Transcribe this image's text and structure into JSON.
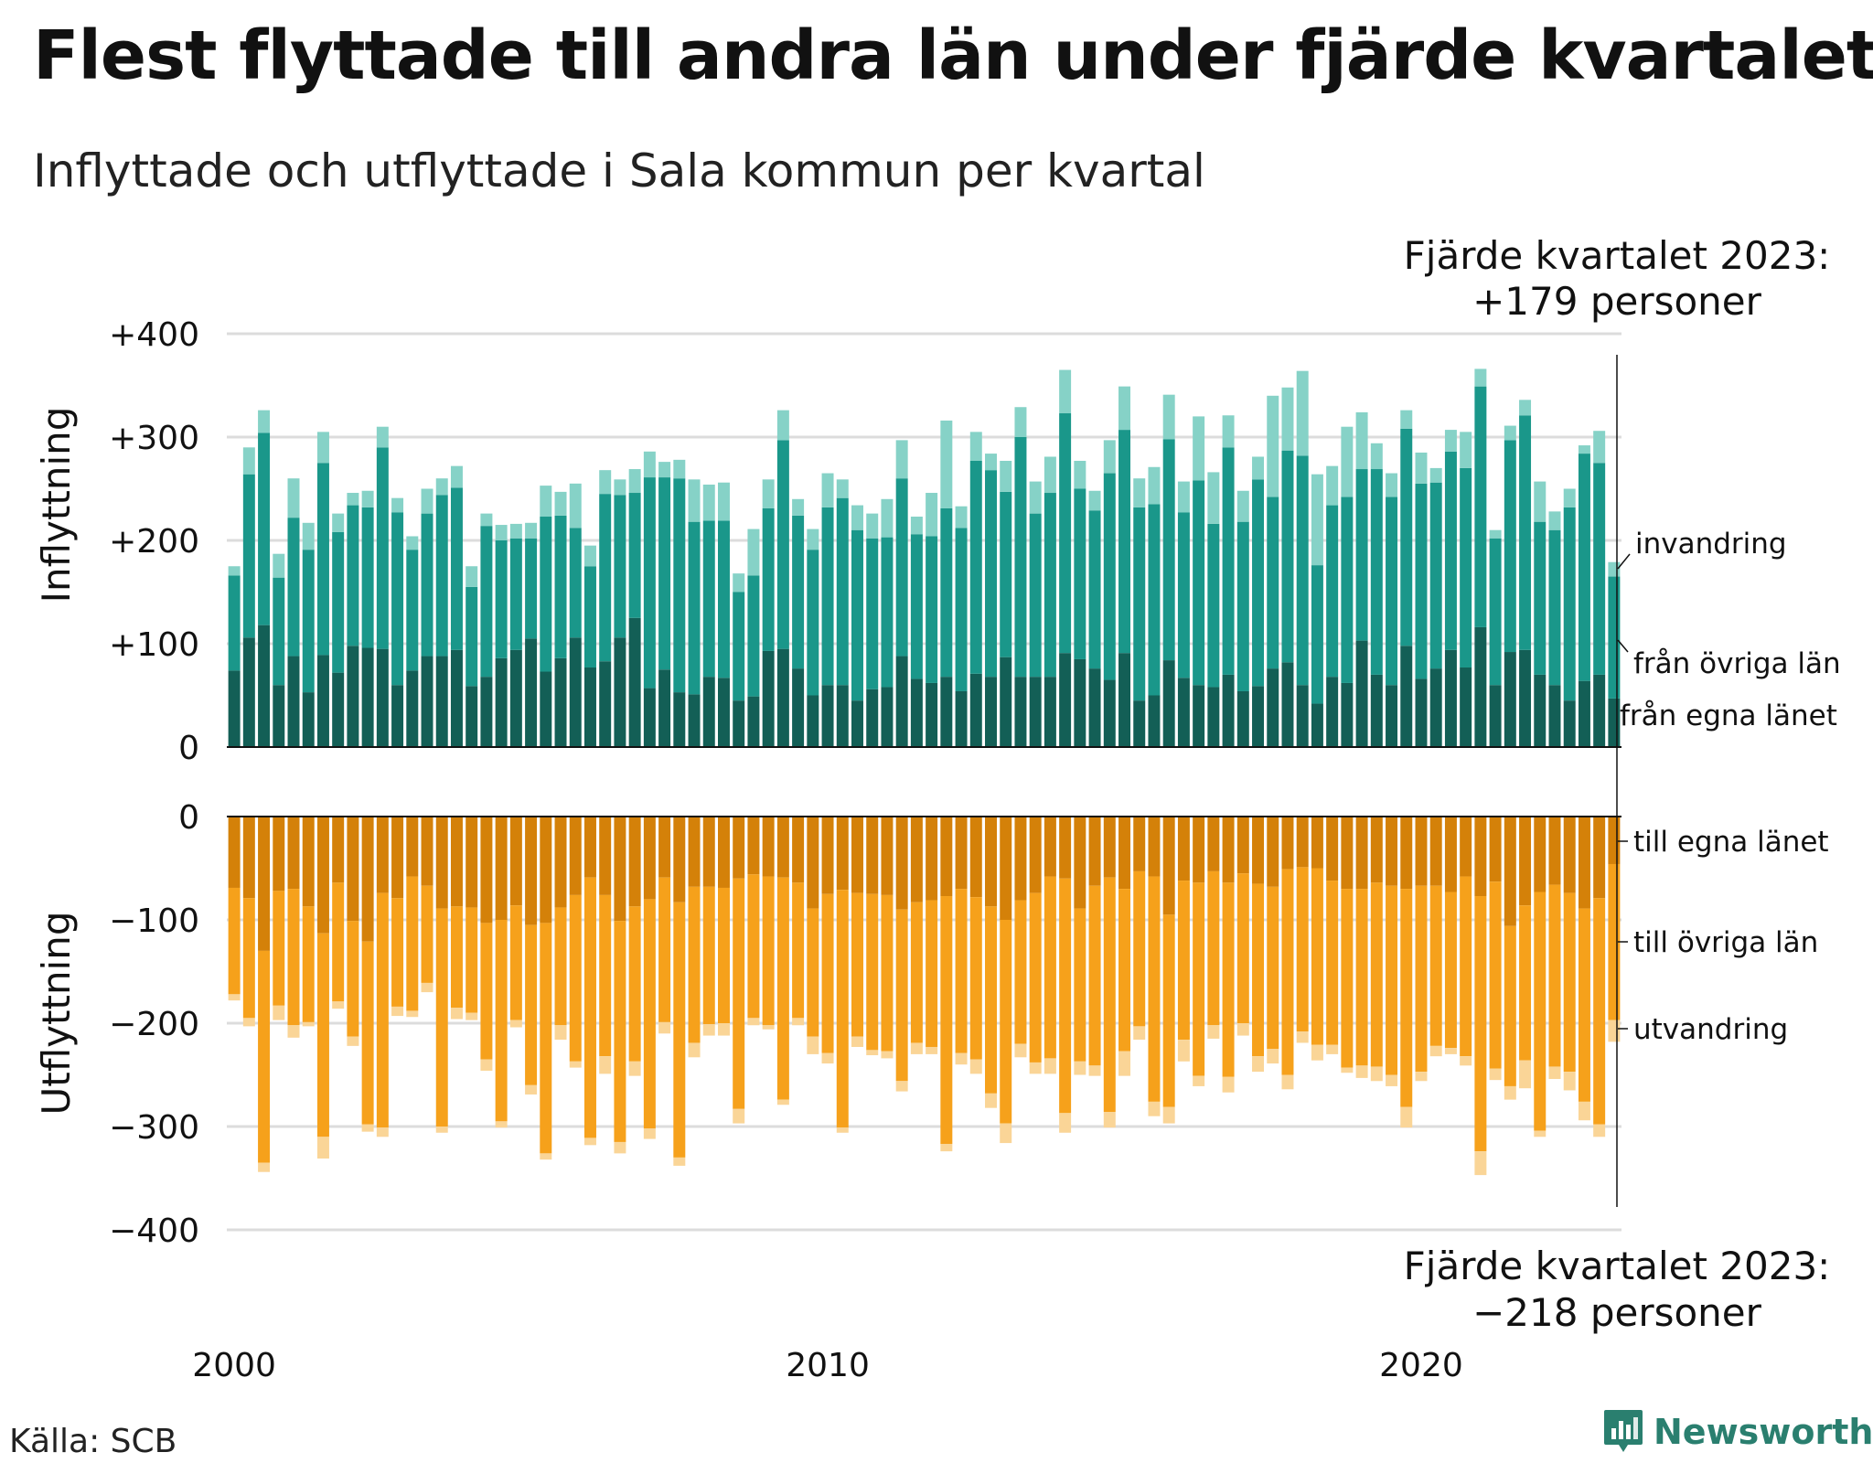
{
  "title": "Flest flyttade till andra län under fjärde kvartalet",
  "subtitle": "Inflyttade och utflyttade i Sala kommun per kvartal",
  "source": "Källa: SCB",
  "brand": "Newsworthy",
  "colors": {
    "in_egna": "#135f56",
    "in_ovriga": "#1a978a",
    "in_invandring": "#86d2c7",
    "ut_egna": "#d48109",
    "ut_ovriga": "#f6a11b",
    "ut_utvandring": "#fad597",
    "grid": "#dcdcdc",
    "brand": "#2a7f6f"
  },
  "chart_data": {
    "type": "bar",
    "stacked": true,
    "period": "quarterly, Q1 2000 – Q4 2023",
    "x_tick_labels": [
      "2000",
      "2010",
      "2020"
    ],
    "grid": true,
    "panels": [
      {
        "name": "inflyttning",
        "ylabel": "Inflyttning",
        "ylim": [
          0,
          400
        ],
        "yticks": [
          "+400",
          "+300",
          "+200",
          "+100",
          "0"
        ],
        "ytick_values": [
          400,
          300,
          200,
          100,
          0
        ],
        "series": [
          {
            "name": "från egna länet",
            "values": [
              74,
              106,
              118,
              60,
              88,
              53,
              89,
              72,
              98,
              96,
              95,
              60,
              74,
              88,
              88,
              94,
              59,
              68,
              86,
              94,
              105,
              73,
              86,
              106,
              77,
              83,
              106,
              125,
              57,
              75,
              53,
              51,
              68,
              67,
              45,
              49,
              93,
              95,
              76,
              50,
              60,
              60,
              45,
              56,
              58,
              88,
              66,
              62,
              68,
              54,
              71,
              68,
              87,
              68,
              68,
              68,
              91,
              85,
              76,
              65,
              91,
              45,
              50,
              84,
              67,
              60,
              58,
              70,
              54,
              59,
              76,
              82,
              60,
              42,
              68,
              62,
              103,
              70,
              60,
              98,
              66,
              76,
              94,
              77,
              116,
              60,
              92,
              94,
              70,
              60,
              45,
              64,
              70,
              47
            ]
          },
          {
            "name": "från övriga län",
            "values": [
              92,
              158,
              186,
              104,
              134,
              138,
              186,
              136,
              136,
              136,
              195,
              167,
              117,
              138,
              156,
              157,
              96,
              146,
              114,
              108,
              97,
              150,
              138,
              106,
              98,
              162,
              138,
              121,
              204,
              186,
              207,
              167,
              151,
              152,
              105,
              117,
              138,
              202,
              148,
              141,
              172,
              181,
              165,
              146,
              145,
              172,
              140,
              142,
              163,
              158,
              206,
              200,
              160,
              232,
              158,
              178,
              232,
              165,
              153,
              200,
              216,
              187,
              185,
              214,
              160,
              198,
              158,
              220,
              164,
              200,
              166,
              205,
              222,
              134,
              166,
              180,
              166,
              199,
              182,
              210,
              189,
              180,
              192,
              193,
              233,
              142,
              205,
              227,
              148,
              150,
              187,
              220,
              205,
              118
            ]
          },
          {
            "name": "invandring",
            "values": [
              9,
              26,
              22,
              23,
              38,
              26,
              30,
              18,
              12,
              16,
              20,
              14,
              13,
              24,
              16,
              21,
              20,
              12,
              15,
              14,
              15,
              30,
              23,
              43,
              20,
              23,
              15,
              23,
              25,
              15,
              18,
              41,
              35,
              37,
              18,
              45,
              28,
              29,
              16,
              20,
              33,
              18,
              24,
              24,
              37,
              37,
              17,
              42,
              85,
              21,
              28,
              16,
              30,
              29,
              31,
              35,
              42,
              27,
              19,
              32,
              42,
              28,
              36,
              43,
              30,
              62,
              50,
              31,
              30,
              22,
              98,
              61,
              82,
              88,
              38,
              68,
              55,
              25,
              23,
              18,
              30,
              14,
              21,
              35,
              17,
              8,
              14,
              15,
              39,
              18,
              18,
              8,
              31,
              14
            ]
          }
        ],
        "totals": [
          175,
          290,
          326,
          187,
          260,
          217,
          305,
          226,
          246,
          248,
          310,
          241,
          204,
          250,
          260,
          272,
          175,
          226,
          215,
          216,
          217,
          253,
          247,
          255,
          195,
          268,
          259,
          269,
          286,
          276,
          278,
          259,
          254,
          256,
          168,
          211,
          259,
          326,
          240,
          211,
          265,
          259,
          234,
          226,
          240,
          297,
          223,
          246,
          316,
          233,
          305,
          284,
          277,
          329,
          257,
          281,
          365,
          277,
          248,
          297,
          349,
          260,
          271,
          341,
          257,
          320,
          266,
          321,
          248,
          281,
          340,
          348,
          364,
          264,
          272,
          310,
          324,
          294,
          265,
          326,
          285,
          270,
          307,
          305,
          366,
          210,
          311,
          336,
          257,
          228,
          250,
          292,
          306,
          179
        ]
      },
      {
        "name": "utflyttning",
        "ylabel": "Utflyttning",
        "ylim": [
          -400,
          0
        ],
        "yticks": [
          "0",
          "−100",
          "−200",
          "−300",
          "−400"
        ],
        "ytick_values": [
          0,
          -100,
          -200,
          -300,
          -400
        ],
        "series": [
          {
            "name": "till egna länet",
            "values": [
              -69,
              -79,
              -130,
              -72,
              -70,
              -87,
              -113,
              -64,
              -101,
              -121,
              -74,
              -79,
              -58,
              -67,
              -89,
              -87,
              -88,
              -103,
              -100,
              -86,
              -105,
              -103,
              -88,
              -76,
              -59,
              -76,
              -101,
              -87,
              -80,
              -59,
              -83,
              -68,
              -68,
              -69,
              -60,
              -56,
              -58,
              -59,
              -64,
              -89,
              -75,
              -71,
              -74,
              -75,
              -76,
              -90,
              -83,
              -81,
              -77,
              -70,
              -78,
              -87,
              -100,
              -81,
              -74,
              -58,
              -60,
              -89,
              -67,
              -59,
              -70,
              -53,
              -58,
              -95,
              -62,
              -64,
              -53,
              -64,
              -55,
              -65,
              -68,
              -51,
              -49,
              -50,
              -62,
              -70,
              -70,
              -64,
              -67,
              -70,
              -67,
              -67,
              -73,
              -58,
              -77,
              -63,
              -106,
              -86,
              -73,
              -66,
              -74,
              -89,
              -79,
              -46
            ]
          },
          {
            "name": "till övriga län",
            "values": [
              -103,
              -116,
              -205,
              -111,
              -132,
              -112,
              -197,
              -115,
              -112,
              -177,
              -227,
              -105,
              -130,
              -94,
              -211,
              -98,
              -102,
              -132,
              -195,
              -111,
              -155,
              -223,
              -114,
              -161,
              -252,
              -156,
              -214,
              -150,
              -222,
              -140,
              -247,
              -151,
              -133,
              -131,
              -223,
              -139,
              -144,
              -215,
              -131,
              -124,
              -154,
              -230,
              -139,
              -151,
              -151,
              -166,
              -136,
              -142,
              -240,
              -159,
              -157,
              -181,
              -197,
              -139,
              -164,
              -176,
              -227,
              -148,
              -174,
              -227,
              -157,
              -150,
              -218,
              -186,
              -154,
              -187,
              -149,
              -188,
              -145,
              -167,
              -157,
              -199,
              -159,
              -171,
              -159,
              -173,
              -171,
              -178,
              -183,
              -211,
              -180,
              -155,
              -151,
              -174,
              -247,
              -181,
              -155,
              -150,
              -231,
              -176,
              -173,
              -187,
              -219,
              -151
            ]
          },
          {
            "name": "utvandring",
            "values": [
              -6,
              -8,
              -9,
              -14,
              -12,
              -4,
              -21,
              -7,
              -9,
              -7,
              -9,
              -9,
              -6,
              -9,
              -6,
              -11,
              -7,
              -11,
              -6,
              -7,
              -9,
              -6,
              -14,
              -6,
              -7,
              -17,
              -11,
              -14,
              -10,
              -11,
              -8,
              -14,
              -11,
              -12,
              -14,
              -7,
              -4,
              -5,
              -7,
              -17,
              -10,
              -5,
              -10,
              -5,
              -7,
              -10,
              -11,
              -7,
              -7,
              -11,
              -14,
              -14,
              -19,
              -13,
              -11,
              -15,
              -19,
              -13,
              -10,
              -15,
              -24,
              -13,
              -14,
              -16,
              -21,
              -10,
              -13,
              -15,
              -12,
              -15,
              -14,
              -14,
              -11,
              -15,
              -9,
              -5,
              -12,
              -14,
              -11,
              -20,
              -9,
              -10,
              -6,
              -9,
              -23,
              -11,
              -13,
              -27,
              -6,
              -12,
              -18,
              -18,
              -12,
              -21
            ]
          }
        ],
        "totals": [
          -178,
          -203,
          -344,
          -197,
          -214,
          -203,
          -331,
          -186,
          -222,
          -305,
          -310,
          -193,
          -194,
          -170,
          -306,
          -196,
          -197,
          -246,
          -301,
          -204,
          -269,
          -332,
          -216,
          -243,
          -318,
          -249,
          -326,
          -251,
          -312,
          -210,
          -338,
          -233,
          -212,
          -212,
          -297,
          -202,
          -206,
          -279,
          -202,
          -230,
          -239,
          -306,
          -223,
          -231,
          -234,
          -266,
          -230,
          -230,
          -324,
          -240,
          -249,
          -282,
          -316,
          -233,
          -249,
          -249,
          -306,
          -250,
          -251,
          -301,
          -251,
          -216,
          -290,
          -297,
          -237,
          -261,
          -215,
          -267,
          -212,
          -247,
          -239,
          -264,
          -219,
          -236,
          -230,
          -248,
          -253,
          -256,
          -261,
          -301,
          -256,
          -232,
          -230,
          -241,
          -347,
          -255,
          -274,
          -263,
          -310,
          -254,
          -265,
          -294,
          -310,
          -218
        ]
      }
    ],
    "annotations": [
      {
        "panel": "inflyttning",
        "text": [
          "Fjärde kvartalet 2023:",
          "+179 personer"
        ]
      },
      {
        "panel": "utflyttning",
        "text": [
          "Fjärde kvartalet 2023:",
          "−218 personer"
        ]
      }
    ],
    "legend_inflyttning": [
      "invandring",
      "från övriga län",
      "från egna länet"
    ],
    "legend_utflyttning": [
      "till egna länet",
      "till övriga län",
      "utvandring"
    ]
  }
}
